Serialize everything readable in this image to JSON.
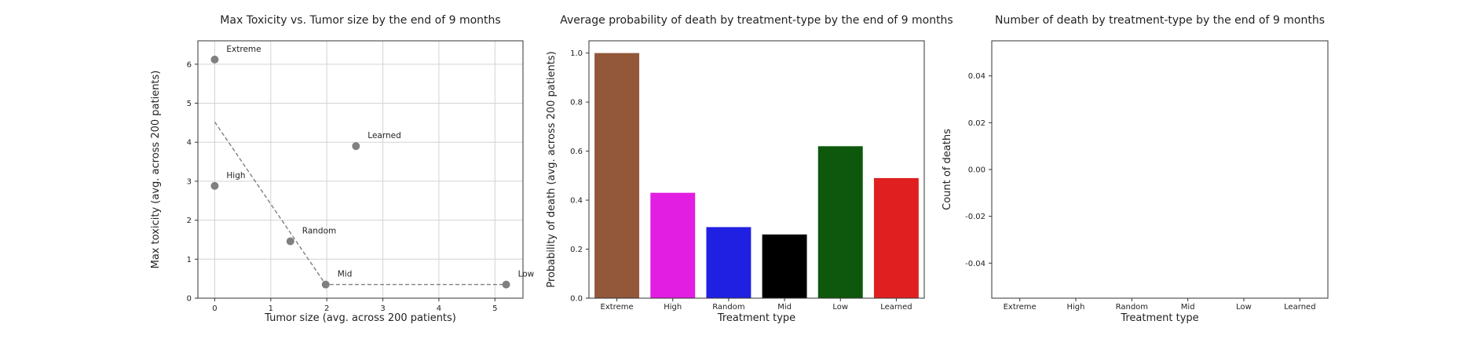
{
  "chart_data": [
    {
      "type": "scatter",
      "title": "Max Toxicity vs. Tumor size by the end of 9 months",
      "xlabel": "Tumor size (avg. across 200 patients)",
      "ylabel": "Max toxicity (avg. across 200 patients)",
      "xlim": [
        -0.3,
        5.5
      ],
      "ylim": [
        0,
        6.6
      ],
      "xticks": [
        0,
        1,
        2,
        3,
        4,
        5
      ],
      "yticks": [
        0,
        1,
        2,
        3,
        4,
        5,
        6
      ],
      "grid": true,
      "point_color": "#808080",
      "points": [
        {
          "label": "Extreme",
          "x": 0.0,
          "y": 6.12
        },
        {
          "label": "High",
          "x": 0.0,
          "y": 2.88
        },
        {
          "label": "Random",
          "x": 1.35,
          "y": 1.46
        },
        {
          "label": "Mid",
          "x": 1.98,
          "y": 0.35
        },
        {
          "label": "Low",
          "x": 5.2,
          "y": 0.35
        },
        {
          "label": "Learned",
          "x": 2.52,
          "y": 3.9
        }
      ],
      "frontier": {
        "style": "dashed",
        "color": "#808080",
        "points": [
          {
            "x": 0.0,
            "y": 4.52
          },
          {
            "x": 1.98,
            "y": 0.35
          },
          {
            "x": 5.2,
            "y": 0.35
          }
        ]
      }
    },
    {
      "type": "bar",
      "title": "Average probability of death by treatment-type by the end of 9 months",
      "xlabel": "Treatment type",
      "ylabel": "Probability of death (avg. across 200 patients)",
      "ylim": [
        0,
        1.05
      ],
      "yticks": [
        0.0,
        0.2,
        0.4,
        0.6,
        0.8,
        1.0
      ],
      "grid": false,
      "categories": [
        "Extreme",
        "High",
        "Random",
        "Mid",
        "Low",
        "Learned"
      ],
      "values": [
        1.0,
        0.43,
        0.29,
        0.26,
        0.62,
        0.49
      ],
      "colors": [
        "#93573a",
        "#e21ee2",
        "#2020e2",
        "#000000",
        "#0d580d",
        "#e02020"
      ]
    },
    {
      "type": "bar",
      "title": "Number of death by treatment-type by the end of 9 months",
      "xlabel": "Treatment type",
      "ylabel": "Count of deaths",
      "ylim": [
        -0.055,
        0.055
      ],
      "yticks": [
        -0.04,
        -0.02,
        0.0,
        0.02,
        0.04
      ],
      "grid": false,
      "categories": [
        "Extreme",
        "High",
        "Random",
        "Mid",
        "Low",
        "Learned"
      ],
      "values": [
        0,
        0,
        0,
        0,
        0,
        0
      ]
    }
  ]
}
